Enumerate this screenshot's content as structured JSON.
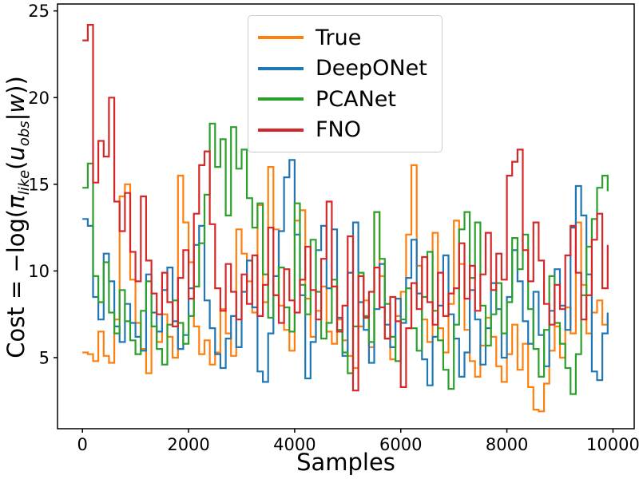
{
  "figure": {
    "background": "#ffffff"
  },
  "axes": {
    "xlabel": "Samples",
    "ylabel_parts": {
      "prefix": "Cost = −log(",
      "pi": "π",
      "pi_sub": "like",
      "open_paren": "(",
      "u": "u",
      "u_sub": "obs",
      "bar": "|",
      "w": "w",
      "close": "))"
    },
    "x_ticks": {
      "values": [
        0,
        2000,
        4000,
        6000,
        8000,
        10000
      ],
      "labels": [
        "0",
        "2000",
        "4000",
        "6000",
        "8000",
        "10000"
      ]
    },
    "y_ticks": {
      "values": [
        5,
        10,
        15,
        20,
        25
      ],
      "labels": [
        "5",
        "10",
        "15",
        "20",
        "25"
      ]
    },
    "xlim": [
      -470,
      10400
    ],
    "ylim": [
      0.9,
      25.4
    ],
    "spine_color": "#000000",
    "tick_color": "#000000",
    "grid": false
  },
  "legend": {
    "border_color": "#cccccc",
    "position": "upper center"
  },
  "chart_data": {
    "type": "line",
    "line_style": "step",
    "title": "",
    "xlabel": "Samples",
    "ylabel": "Cost = -log(pi_like(u_obs|w))",
    "xlim": [
      -470,
      10400
    ],
    "ylim": [
      0.9,
      25.4
    ],
    "grid": false,
    "legend_position": "upper center",
    "x_start": 0,
    "x_step": 100,
    "series": [
      {
        "name": "True",
        "color": "#ff7f0e",
        "values": [
          5.3,
          5.2,
          4.8,
          6.5,
          5.1,
          4.7,
          7.2,
          14.3,
          15.0,
          9.5,
          7.0,
          5.5,
          4.1,
          6.8,
          5.9,
          7.5,
          6.2,
          5.0,
          15.5,
          12.8,
          10.5,
          6.8,
          5.2,
          6.0,
          4.6,
          5.3,
          7.8,
          6.4,
          5.1,
          12.4,
          11.0,
          9.4,
          7.6,
          13.8,
          8.2,
          16.0,
          12.4,
          8.0,
          6.6,
          5.4,
          12.9,
          13.5,
          8.4,
          6.2,
          7.7,
          9.1,
          6.5,
          5.8,
          7.2,
          6.0,
          5.1,
          4.4,
          6.8,
          8.3,
          5.6,
          13.4,
          9.7,
          6.1,
          4.9,
          7.4,
          8.8,
          12.1,
          16.1,
          10.3,
          7.2,
          5.9,
          12.2,
          6.7,
          5.3,
          8.1,
          12.9,
          10.4,
          6.6,
          4.8,
          3.9,
          5.7,
          7.3,
          6.2,
          4.5,
          3.6,
          5.2,
          6.9,
          4.3,
          5.8,
          3.3,
          2.0,
          1.9,
          3.5,
          5.4,
          6.8,
          5.0,
          7.9,
          6.4,
          12.8,
          9.2,
          6.4,
          7.6,
          8.3,
          6.9,
          7.5
        ]
      },
      {
        "name": "DeepONet",
        "color": "#1f77b4",
        "values": [
          13.0,
          12.6,
          8.5,
          7.2,
          11.0,
          9.4,
          6.8,
          5.9,
          8.1,
          7.0,
          6.2,
          5.4,
          9.8,
          7.6,
          6.5,
          8.9,
          10.2,
          7.1,
          5.5,
          6.3,
          9.0,
          11.5,
          12.6,
          8.3,
          6.7,
          5.2,
          4.4,
          6.1,
          7.4,
          5.6,
          8.8,
          10.6,
          7.9,
          4.2,
          3.6,
          6.4,
          9.7,
          12.3,
          15.4,
          16.4,
          12.1,
          8.6,
          3.8,
          5.9,
          11.2,
          12.6,
          9.0,
          12.4,
          7.3,
          5.1,
          9.9,
          12.8,
          8.2,
          6.6,
          4.7,
          7.8,
          10.4,
          6.9,
          5.6,
          8.4,
          7.0,
          9.6,
          11.8,
          8.7,
          4.9,
          3.4,
          6.2,
          8.0,
          10.9,
          7.5,
          6.1,
          3.9,
          5.3,
          8.9,
          7.2,
          4.6,
          6.7,
          9.3,
          7.8,
          5.0,
          8.5,
          11.2,
          9.4,
          7.1,
          5.8,
          8.8,
          6.3,
          4.5,
          7.7,
          10.1,
          8.0,
          6.6,
          12.5,
          14.9,
          13.2,
          9.8,
          4.2,
          3.7,
          6.4,
          7.6
        ]
      },
      {
        "name": "PCANet",
        "color": "#2ca02c",
        "values": [
          14.8,
          16.2,
          9.7,
          8.2,
          10.5,
          7.6,
          6.4,
          8.9,
          7.1,
          6.0,
          5.2,
          7.7,
          9.4,
          6.8,
          5.5,
          4.6,
          6.9,
          8.3,
          7.0,
          5.8,
          7.4,
          9.1,
          11.6,
          14.4,
          18.5,
          16.0,
          17.6,
          13.2,
          18.3,
          15.9,
          17.0,
          14.2,
          12.5,
          13.9,
          9.8,
          7.3,
          8.6,
          10.2,
          7.9,
          6.5,
          13.9,
          9.2,
          7.5,
          11.8,
          8.8,
          6.1,
          7.0,
          9.5,
          6.6,
          5.3,
          4.1,
          6.8,
          9.9,
          7.4,
          5.9,
          13.4,
          10.7,
          8.1,
          6.2,
          4.8,
          7.2,
          9.0,
          6.7,
          5.4,
          8.5,
          11.1,
          7.7,
          6.0,
          4.3,
          3.2,
          6.9,
          12.4,
          13.4,
          9.6,
          12.8,
          8.0,
          5.7,
          7.5,
          9.3,
          6.4,
          8.2,
          11.9,
          10.1,
          12.1,
          7.8,
          5.5,
          3.9,
          6.6,
          9.7,
          7.0,
          5.8,
          4.4,
          2.9,
          5.2,
          8.6,
          11.4,
          13.0,
          14.8,
          15.5,
          14.6
        ]
      },
      {
        "name": "FNO",
        "color": "#d62728",
        "values": [
          23.3,
          24.2,
          15.1,
          17.5,
          16.6,
          20.0,
          14.0,
          12.3,
          14.5,
          11.1,
          9.4,
          14.3,
          10.6,
          8.7,
          7.5,
          9.9,
          8.2,
          6.8,
          9.6,
          11.2,
          8.4,
          13.3,
          16.1,
          16.9,
          12.7,
          9.0,
          7.7,
          10.4,
          8.8,
          7.2,
          9.8,
          8.1,
          10.9,
          7.4,
          9.2,
          12.5,
          8.6,
          7.0,
          10.1,
          8.3,
          7.6,
          9.5,
          11.4,
          8.9,
          7.2,
          10.7,
          14.0,
          9.1,
          6.5,
          8.0,
          12.0,
          3.1,
          9.7,
          7.3,
          8.8,
          10.2,
          7.9,
          6.1,
          8.5,
          7.1,
          3.3,
          6.7,
          9.3,
          7.8,
          10.8,
          8.2,
          6.9,
          9.9,
          7.4,
          8.7,
          9.0,
          11.6,
          8.4,
          10.3,
          7.7,
          9.8,
          12.2,
          8.9,
          11.0,
          9.5,
          15.5,
          16.3,
          17.0,
          11.2,
          9.4,
          12.8,
          10.6,
          8.1,
          6.9,
          9.2,
          7.8,
          10.9,
          12.6,
          9.9,
          7.2,
          8.6,
          11.8,
          13.3,
          9.0,
          11.5
        ]
      }
    ]
  }
}
